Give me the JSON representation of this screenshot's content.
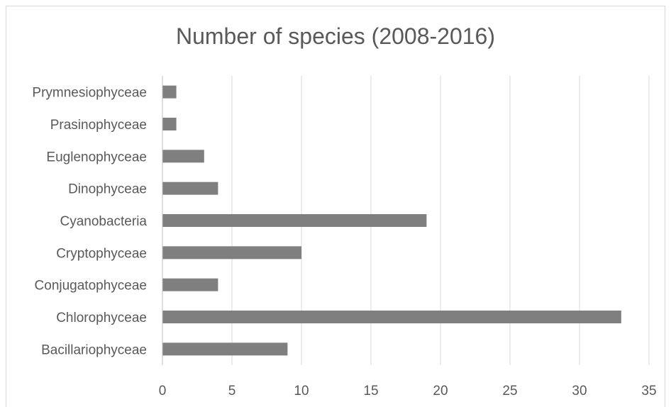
{
  "chart_data": {
    "type": "bar",
    "orientation": "horizontal",
    "title": "Number of species (2008-2016)",
    "categories": [
      "Bacillariophyceae",
      "Chlorophyceae",
      "Conjugatophyceae",
      "Cryptophyceae",
      "Cyanobacteria",
      "Dinophyceae",
      "Euglenophyceae",
      "Prasinophyceae",
      "Prymnesiophyceae"
    ],
    "values": [
      9,
      33,
      4,
      10,
      19,
      4,
      3,
      1,
      1
    ],
    "xlim": [
      0,
      35
    ],
    "xticks": [
      0,
      5,
      10,
      15,
      20,
      25,
      30,
      35
    ],
    "grid": "vertical",
    "legend": "none",
    "colors": {
      "bar": "#7f7f7f",
      "grid": "#d9d9d9",
      "axis": "#bfbfbf",
      "text": "#595959",
      "title": "#595959"
    }
  }
}
